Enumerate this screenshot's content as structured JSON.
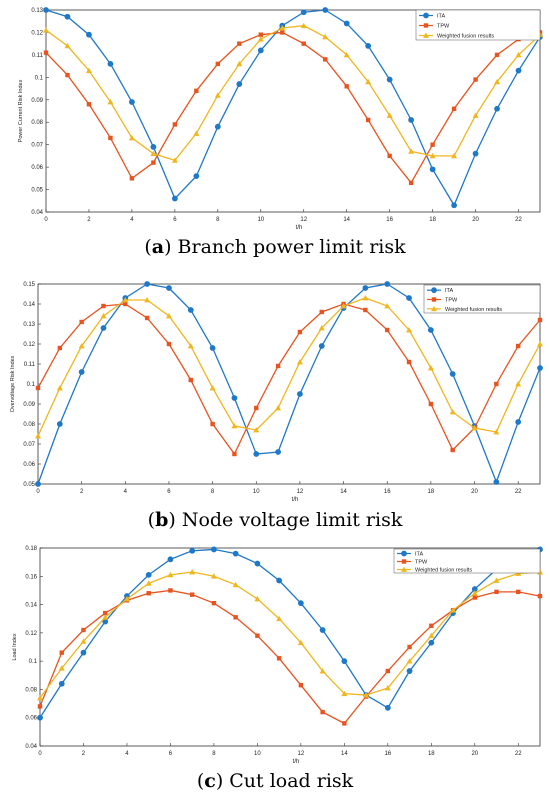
{
  "colors": {
    "ita": "#1f78c8",
    "tpw": "#e8531f",
    "fusion": "#f0b61e",
    "axis": "#333333"
  },
  "captions": [
    {
      "label": "a",
      "text": "Branch power limit risk"
    },
    {
      "label": "b",
      "text": "Node voltage limit risk"
    },
    {
      "label": "c",
      "text": "Cut load risk"
    }
  ],
  "chart_data": [
    {
      "type": "line",
      "xlabel": "t/h",
      "ylabel": "Power Current Risk Index",
      "xlim": [
        0,
        23
      ],
      "ylim": [
        0.04,
        0.13
      ],
      "xticks": [
        0,
        2,
        4,
        6,
        8,
        10,
        12,
        14,
        16,
        18,
        20,
        22
      ],
      "yticks": [
        0.04,
        0.05,
        0.06,
        0.07,
        0.08,
        0.09,
        0.1,
        0.11,
        0.12,
        0.13
      ],
      "legend_position": "top-right",
      "x": [
        0,
        1,
        2,
        3,
        4,
        5,
        6,
        7,
        8,
        9,
        10,
        11,
        12,
        13,
        14,
        15,
        16,
        17,
        18,
        19,
        20,
        21,
        22,
        23
      ],
      "series": [
        {
          "name": "ITA",
          "marker": "circle",
          "values": [
            0.13,
            0.127,
            0.119,
            0.106,
            0.089,
            0.069,
            0.046,
            0.056,
            0.078,
            0.097,
            0.112,
            0.123,
            0.129,
            0.13,
            0.124,
            0.114,
            0.099,
            0.081,
            0.059,
            0.043,
            0.066,
            0.086,
            0.103,
            0.118
          ]
        },
        {
          "name": "TPW",
          "marker": "square",
          "values": [
            0.111,
            0.101,
            0.088,
            0.073,
            0.055,
            0.062,
            0.079,
            0.094,
            0.106,
            0.115,
            0.119,
            0.12,
            0.115,
            0.108,
            0.096,
            0.081,
            0.065,
            0.053,
            0.07,
            0.086,
            0.099,
            0.11,
            0.117,
            0.12
          ]
        },
        {
          "name": "Weighted fusion results",
          "marker": "triangle",
          "values": [
            0.121,
            0.114,
            0.103,
            0.089,
            0.073,
            0.066,
            0.063,
            0.075,
            0.092,
            0.106,
            0.117,
            0.122,
            0.123,
            0.118,
            0.11,
            0.098,
            0.083,
            0.067,
            0.065,
            0.065,
            0.083,
            0.098,
            0.11,
            0.119
          ]
        }
      ]
    },
    {
      "type": "line",
      "xlabel": "t/h",
      "ylabel": "Overvoltage Risk Index",
      "xlim": [
        0,
        23
      ],
      "ylim": [
        0.05,
        0.15
      ],
      "xticks": [
        0,
        2,
        4,
        6,
        8,
        10,
        12,
        14,
        16,
        18,
        20,
        22
      ],
      "yticks": [
        0.05,
        0.06,
        0.07,
        0.08,
        0.09,
        0.1,
        0.11,
        0.12,
        0.13,
        0.14,
        0.15
      ],
      "legend_position": "top-right",
      "x": [
        0,
        1,
        2,
        3,
        4,
        5,
        6,
        7,
        8,
        9,
        10,
        11,
        12,
        13,
        14,
        15,
        16,
        17,
        18,
        19,
        20,
        21,
        22,
        23
      ],
      "series": [
        {
          "name": "ITA",
          "marker": "circle",
          "values": [
            0.05,
            0.08,
            0.106,
            0.128,
            0.143,
            0.15,
            0.148,
            0.137,
            0.118,
            0.093,
            0.065,
            0.066,
            0.095,
            0.119,
            0.138,
            0.148,
            0.15,
            0.143,
            0.127,
            0.105,
            0.079,
            0.051,
            0.081,
            0.108
          ]
        },
        {
          "name": "TPW",
          "marker": "square",
          "values": [
            0.098,
            0.118,
            0.131,
            0.139,
            0.14,
            0.133,
            0.12,
            0.102,
            0.08,
            0.065,
            0.088,
            0.109,
            0.126,
            0.136,
            0.14,
            0.137,
            0.127,
            0.111,
            0.09,
            0.067,
            0.078,
            0.1,
            0.119,
            0.132
          ]
        },
        {
          "name": "Weighted fusion results",
          "marker": "triangle",
          "values": [
            0.074,
            0.098,
            0.119,
            0.134,
            0.142,
            0.142,
            0.134,
            0.119,
            0.098,
            0.079,
            0.077,
            0.088,
            0.111,
            0.128,
            0.139,
            0.143,
            0.139,
            0.127,
            0.108,
            0.086,
            0.078,
            0.076,
            0.1,
            0.12
          ]
        }
      ]
    },
    {
      "type": "line",
      "xlabel": "t/h",
      "ylabel": "Load Index",
      "xlim": [
        0,
        23
      ],
      "ylim": [
        0.04,
        0.18
      ],
      "xticks": [
        0,
        2,
        4,
        6,
        8,
        10,
        12,
        14,
        16,
        18,
        20,
        22
      ],
      "yticks": [
        0.04,
        0.06,
        0.08,
        0.1,
        0.12,
        0.14,
        0.16,
        0.18
      ],
      "legend_position": "top-right",
      "x": [
        0,
        1,
        2,
        3,
        4,
        5,
        6,
        7,
        8,
        9,
        10,
        11,
        12,
        13,
        14,
        15,
        16,
        17,
        18,
        19,
        20,
        21,
        22,
        23
      ],
      "series": [
        {
          "name": "ITA",
          "marker": "circle",
          "values": [
            0.06,
            0.084,
            0.106,
            0.128,
            0.146,
            0.161,
            0.172,
            0.178,
            0.179,
            0.176,
            0.169,
            0.157,
            0.141,
            0.122,
            0.1,
            0.076,
            0.067,
            0.093,
            0.113,
            0.134,
            0.151,
            0.165,
            0.174,
            0.179
          ]
        },
        {
          "name": "TPW",
          "marker": "square",
          "values": [
            0.068,
            0.106,
            0.122,
            0.134,
            0.143,
            0.148,
            0.15,
            0.147,
            0.141,
            0.131,
            0.118,
            0.102,
            0.083,
            0.064,
            0.056,
            0.075,
            0.093,
            0.11,
            0.125,
            0.136,
            0.145,
            0.149,
            0.149,
            0.146
          ]
        },
        {
          "name": "Weighted fusion results",
          "marker": "triangle",
          "values": [
            0.074,
            0.095,
            0.114,
            0.131,
            0.144,
            0.155,
            0.161,
            0.163,
            0.16,
            0.154,
            0.144,
            0.13,
            0.113,
            0.093,
            0.077,
            0.076,
            0.081,
            0.1,
            0.118,
            0.136,
            0.148,
            0.157,
            0.162,
            0.163
          ]
        }
      ]
    }
  ]
}
